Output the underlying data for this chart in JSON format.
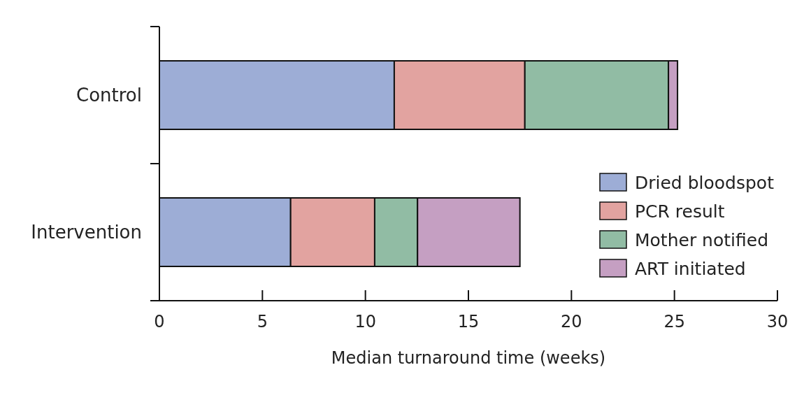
{
  "chart_data": {
    "type": "bar",
    "orientation": "horizontal",
    "stacked": true,
    "categories": [
      "Control",
      "Intervention"
    ],
    "series": [
      {
        "name": "Dried bloodspot",
        "color": "#9dadd6",
        "values": [
          11.4,
          6.37
        ]
      },
      {
        "name": "PCR result",
        "color": "#e2a3a0",
        "values": [
          6.34,
          4.08
        ]
      },
      {
        "name": "Mother notified",
        "color": "#91bca4",
        "values": [
          6.97,
          2.08
        ]
      },
      {
        "name": "ART initiated",
        "color": "#c59fc2",
        "values": [
          0.44,
          4.97
        ]
      }
    ],
    "xlim": [
      0,
      30
    ],
    "xticks": [
      0,
      5,
      10,
      15,
      20,
      25,
      30
    ],
    "xlabel": "Median turnaround time (weeks)",
    "legend": "bottom right",
    "grid": false
  }
}
